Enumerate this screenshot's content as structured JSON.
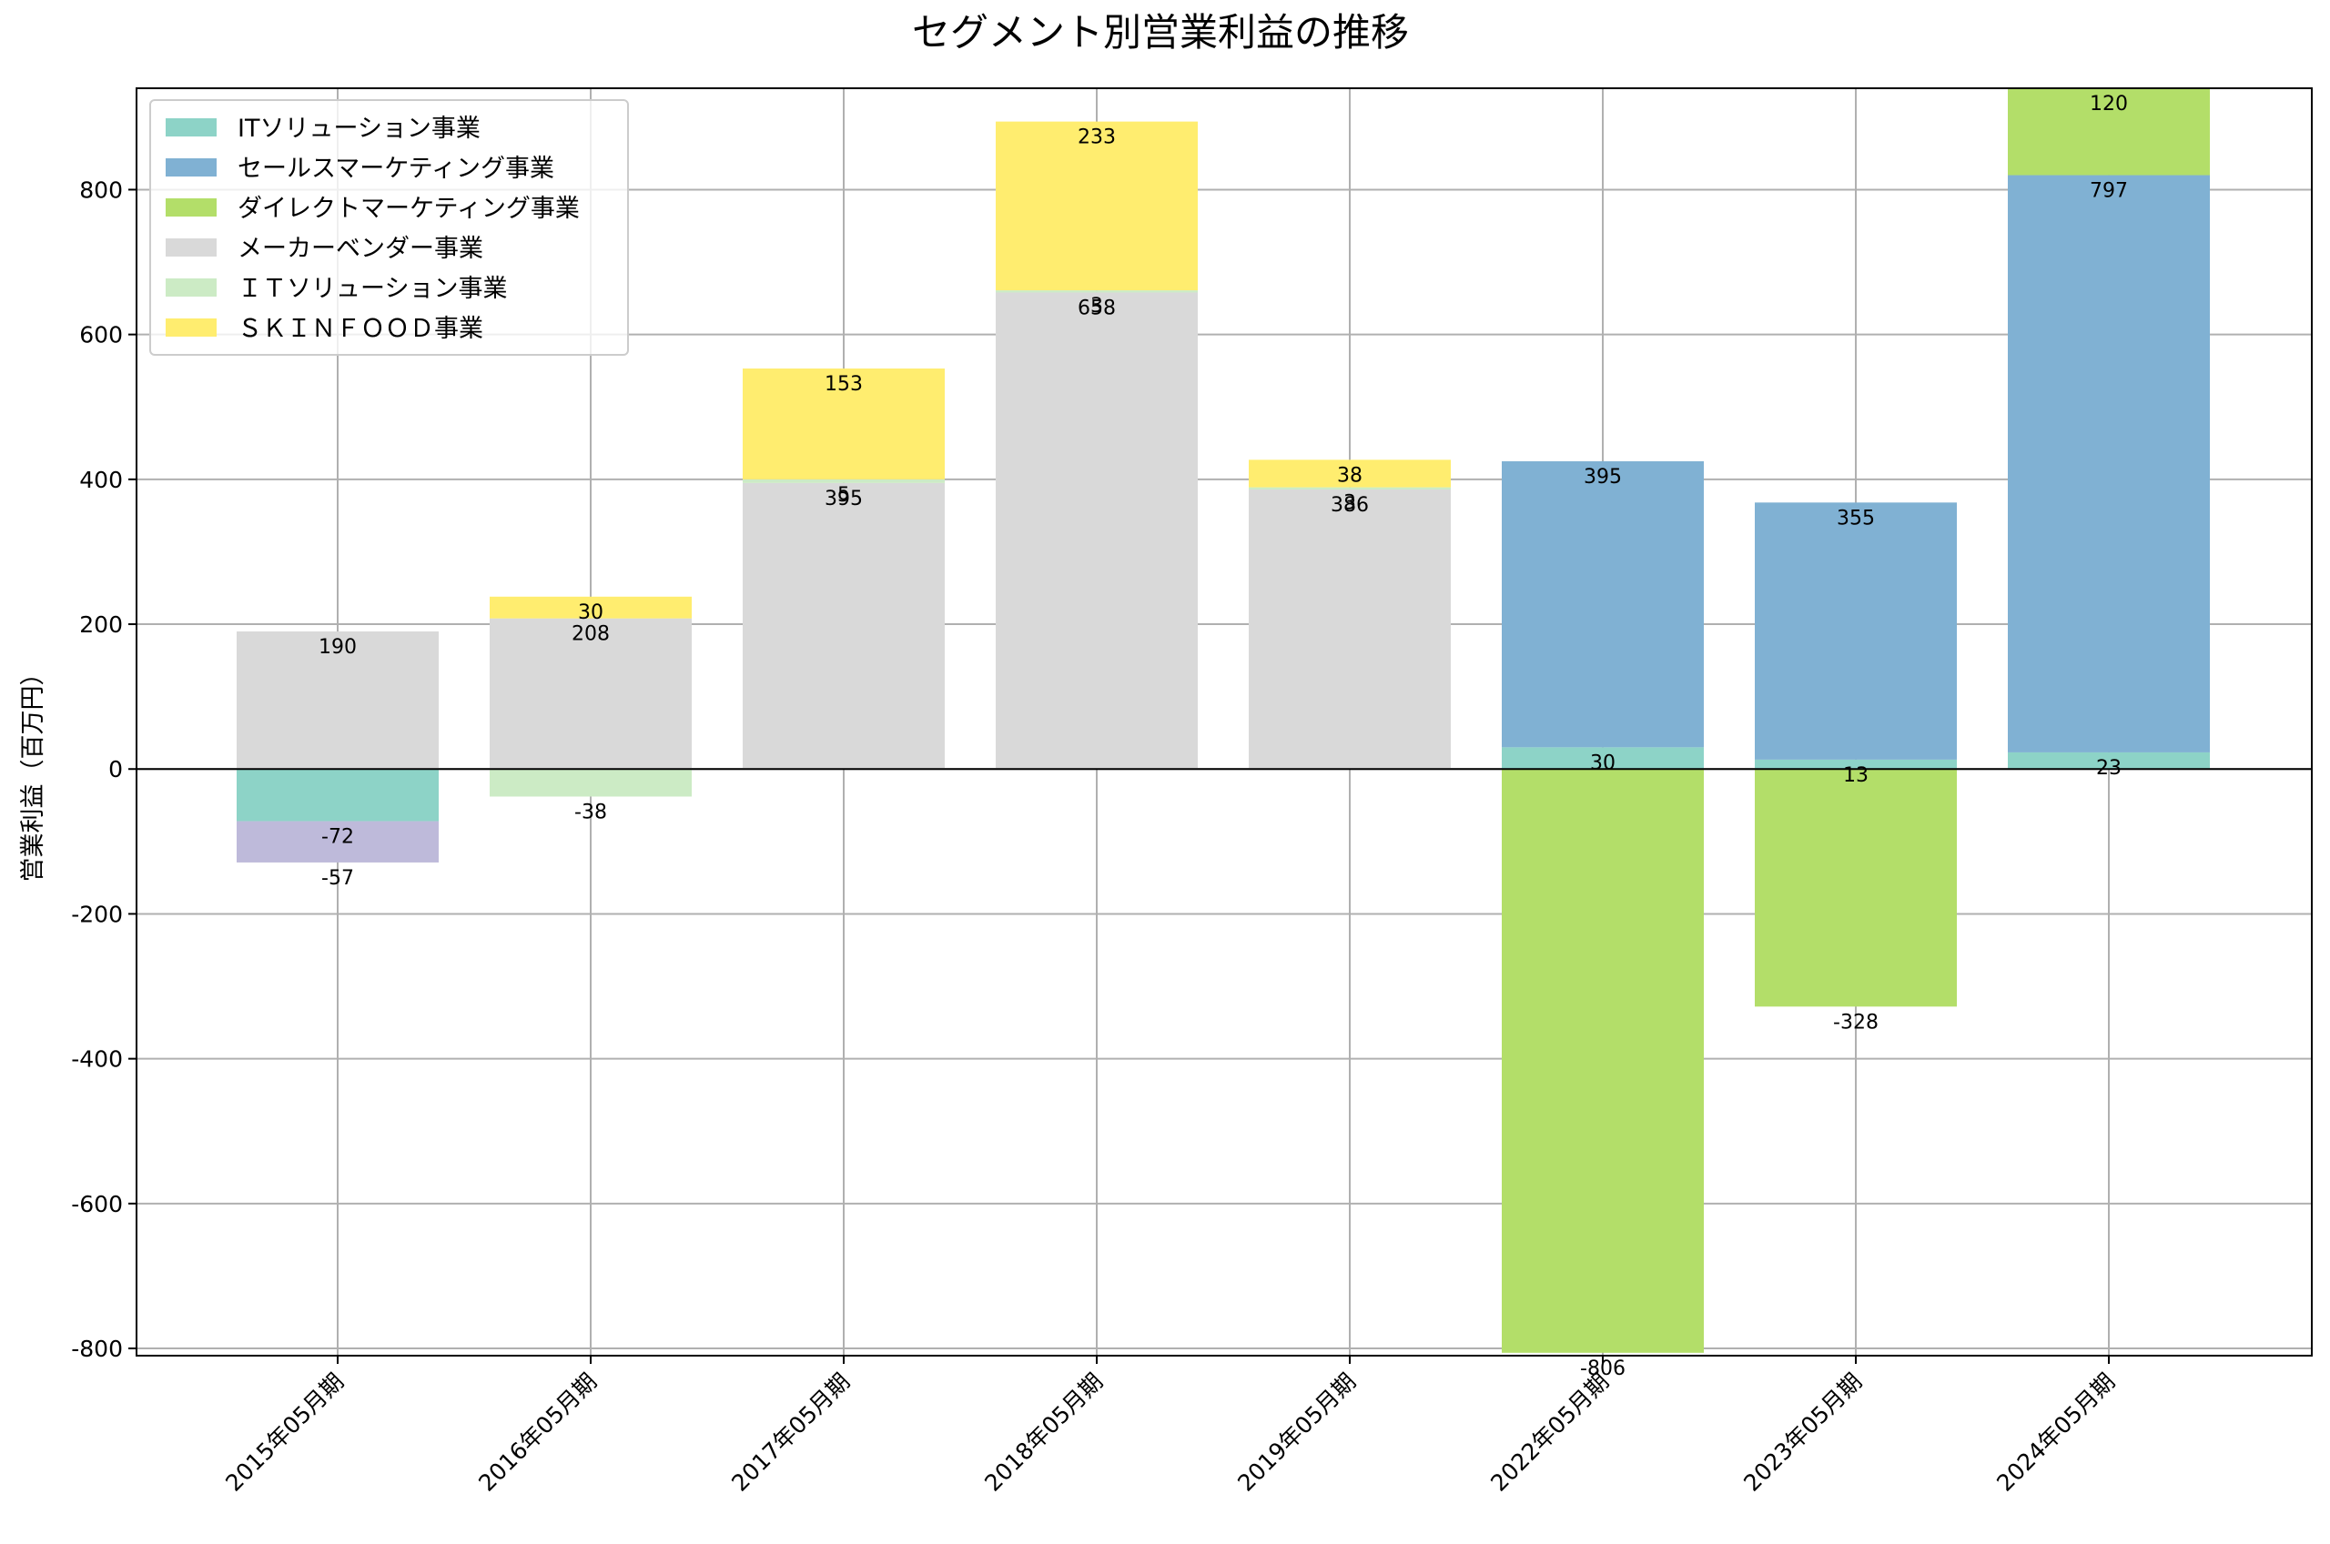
{
  "chart_data": {
    "type": "bar",
    "stacked": true,
    "title": "セグメント別営業利益の推移",
    "xlabel": "",
    "ylabel": "営業利益（百万円）",
    "ylim": [
      -810,
      940
    ],
    "yticks": [
      -800,
      -600,
      -400,
      -200,
      0,
      200,
      400,
      600,
      800
    ],
    "grid": true,
    "legend_position": "upper-left",
    "categories": [
      "2015年05月期",
      "2016年05月期",
      "2017年05月期",
      "2018年05月期",
      "2019年05月期",
      "2022年05月期",
      "2023年05月期",
      "2024年05月期"
    ],
    "series": [
      {
        "name": "ITソリューション事業",
        "color": "#8dd3c7",
        "legend": true,
        "values": [
          -72,
          null,
          null,
          null,
          null,
          30,
          13,
          23
        ]
      },
      {
        "name": "セールスマーケティング事業",
        "color": "#80b1d3",
        "legend": true,
        "values": [
          null,
          null,
          null,
          null,
          null,
          395,
          355,
          797
        ]
      },
      {
        "name": "ダイレクトマーケティング事業",
        "color": "#b3de69",
        "legend": true,
        "values": [
          null,
          null,
          null,
          null,
          null,
          -806,
          -328,
          120
        ]
      },
      {
        "name": "メーカーベンダー事業",
        "color": "#d9d9d9",
        "legend": true,
        "values": [
          190,
          208,
          395,
          658,
          386,
          null,
          null,
          null
        ]
      },
      {
        "name": "ＩＴソリューション事業",
        "color": "#ccebc5",
        "legend": true,
        "values": [
          null,
          -38,
          5,
          3,
          3,
          null,
          null,
          null
        ]
      },
      {
        "name": "ＳＫＩＮＦＯＯＤ事業",
        "color": "#ffed6f",
        "legend": true,
        "values": [
          null,
          30,
          153,
          233,
          38,
          null,
          null,
          null
        ]
      },
      {
        "name": "",
        "color": "#bebada",
        "legend": false,
        "values": [
          -57,
          null,
          null,
          null,
          null,
          null,
          null,
          null
        ]
      }
    ]
  }
}
